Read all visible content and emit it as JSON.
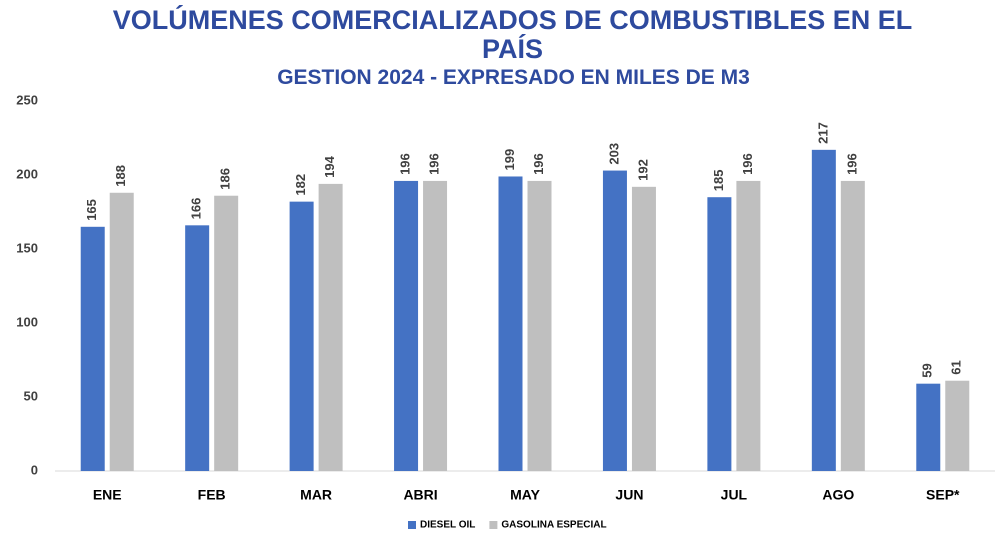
{
  "chart_data": {
    "type": "bar",
    "title": "VOLÚMENES COMERCIALIZADOS DE COMBUSTIBLES EN EL PAÍS",
    "subtitle": "GESTION 2024 - EXPRESADO EN MILES DE M3",
    "categories": [
      "ENE",
      "FEB",
      "MAR",
      "ABRI",
      "MAY",
      "JUN",
      "JUL",
      "AGO",
      "SEP*"
    ],
    "series": [
      {
        "name": "DIESEL OIL",
        "color": "#4472c4",
        "values": [
          165,
          166,
          182,
          196,
          199,
          203,
          185,
          217,
          59
        ]
      },
      {
        "name": "GASOLINA ESPECIAL",
        "color": "#bfbfbf",
        "values": [
          188,
          186,
          194,
          196,
          196,
          192,
          196,
          196,
          61
        ]
      }
    ],
    "ylim": [
      0,
      250
    ],
    "yticks": [
      0,
      50,
      100,
      150,
      200,
      250
    ],
    "grid": false,
    "legend": "bottom"
  }
}
